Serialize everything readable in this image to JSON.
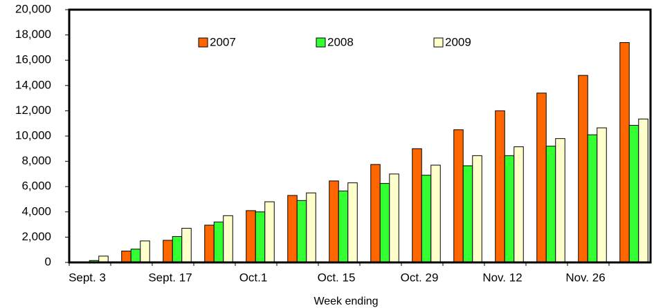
{
  "chart_data": {
    "type": "bar",
    "x_label": "Week ending",
    "categories": [
      "Sept. 3",
      null,
      "Sept. 17",
      null,
      "Oct.1",
      null,
      "Oct. 15",
      null,
      "Oct. 29",
      null,
      "Nov. 12",
      null,
      "Nov. 26",
      null
    ],
    "series": [
      {
        "name": "2007",
        "color": "#ff6600",
        "values": [
          50,
          900,
          1750,
          2950,
          4100,
          5300,
          6450,
          7750,
          9000,
          10500,
          12000,
          13400,
          14800,
          17400
        ]
      },
      {
        "name": "2008",
        "color": "#33ff33",
        "values": [
          150,
          1050,
          2050,
          3200,
          4000,
          4900,
          5650,
          6250,
          6900,
          7650,
          8450,
          9200,
          10100,
          10850
        ]
      },
      {
        "name": "2009",
        "color": "#ffffcc",
        "values": [
          500,
          1700,
          2700,
          3700,
          4800,
          5500,
          6300,
          7000,
          7700,
          8450,
          9150,
          9800,
          10650,
          11350
        ]
      }
    ],
    "ylim": [
      0,
      20000
    ],
    "yticks": [
      0,
      {
        "value": 2000,
        "label": "2,000"
      },
      {
        "value": 4000,
        "label": "4,000"
      },
      {
        "value": 6000,
        "label": "6,000"
      },
      {
        "value": 8000,
        "label": "8,000"
      },
      {
        "value": 10000,
        "label": "10,000"
      },
      {
        "value": 12000,
        "label": "12,000"
      },
      {
        "value": 14000,
        "label": "14,000"
      },
      {
        "value": 16000,
        "label": "16,000"
      },
      {
        "value": 18000,
        "label": "18,000"
      },
      {
        "value": 20000,
        "label": "20,000"
      }
    ],
    "grid": false,
    "legend": "top"
  }
}
